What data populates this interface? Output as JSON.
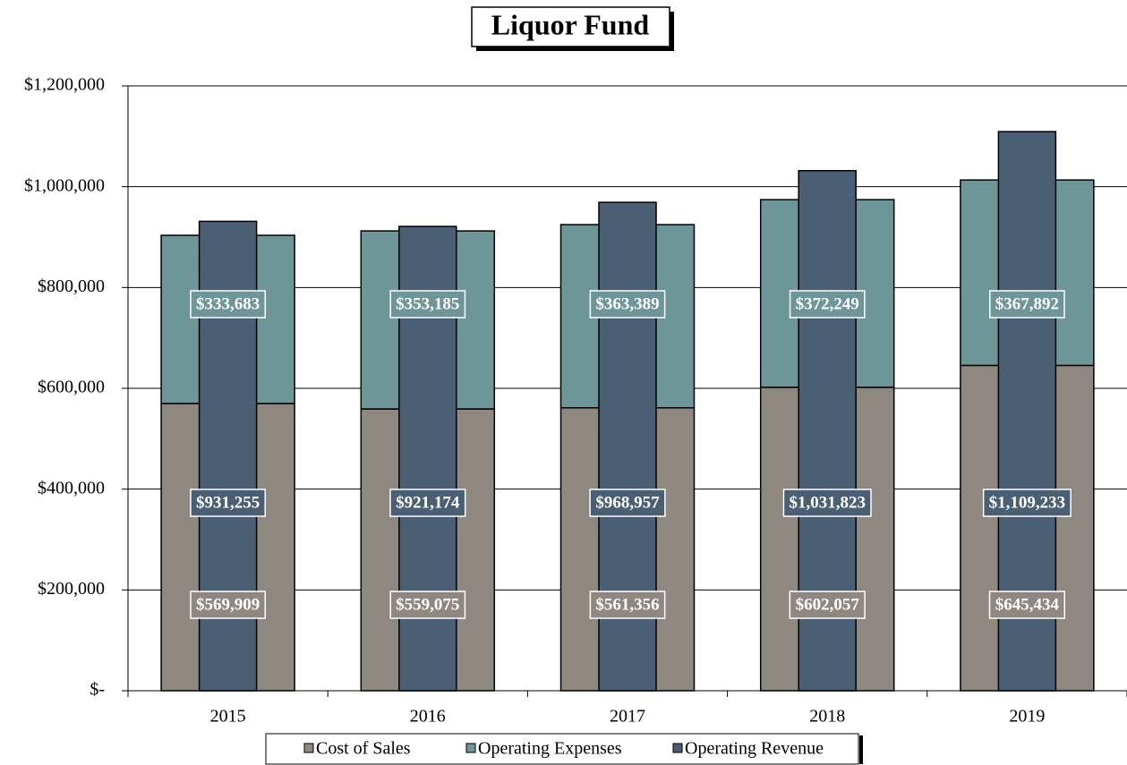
{
  "chart_data": {
    "type": "bar",
    "title": "Liquor Fund",
    "categories": [
      "2015",
      "2016",
      "2017",
      "2018",
      "2019"
    ],
    "series": [
      {
        "name": "Cost of Sales",
        "color": "#8f8880",
        "stack": "a",
        "values": [
          569909,
          559075,
          561356,
          602057,
          645434
        ],
        "value_labels": [
          "$569,909",
          "$559,075",
          "$561,356",
          "$602,057",
          "$645,434"
        ]
      },
      {
        "name": "Operating Expenses",
        "color": "#6e9597",
        "stack": "a",
        "values": [
          333683,
          353185,
          363389,
          372249,
          367892
        ],
        "value_labels": [
          "$333,683",
          "$353,185",
          "$363,389",
          "$372,249",
          "$367,892"
        ]
      },
      {
        "name": "Operating Revenue",
        "color": "#4a5f74",
        "stack": "b",
        "values": [
          931255,
          921174,
          968957,
          1031823,
          1109233
        ],
        "value_labels": [
          "$931,255",
          "$921,174",
          "$968,957",
          "$1,031,823",
          "$1,109,233"
        ]
      }
    ],
    "ylim": [
      0,
      1200000
    ],
    "yticks": [
      {
        "value": 0,
        "label": "$-"
      },
      {
        "value": 200000,
        "label": "$200,000"
      },
      {
        "value": 400000,
        "label": "$400,000"
      },
      {
        "value": 600000,
        "label": "$600,000"
      },
      {
        "value": 800000,
        "label": "$800,000"
      },
      {
        "value": 1000000,
        "label": "$1,000,000"
      },
      {
        "value": 1200000,
        "label": "$1,200,000"
      }
    ],
    "grid": true
  }
}
